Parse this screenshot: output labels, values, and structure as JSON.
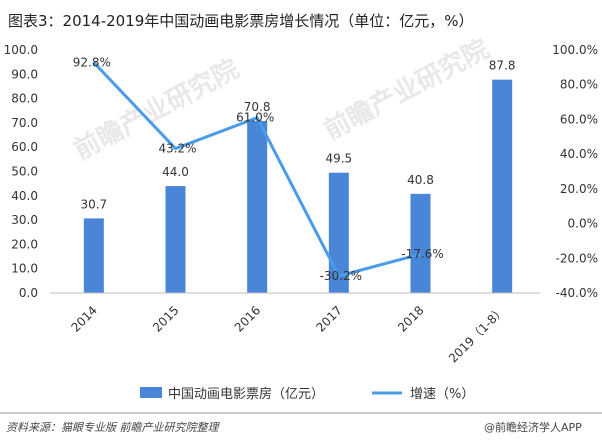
{
  "chart_data": {
    "type": "bar",
    "title": "图表3：2014-2019年中国动画电影票房增长情况（单位：亿元，%）",
    "categories": [
      "2014",
      "2015",
      "2016",
      "2017",
      "2018",
      "2019（1-8）"
    ],
    "series": [
      {
        "name": "中国动画电影票房（亿元）",
        "type": "bar",
        "axis": "left",
        "values": [
          30.7,
          44.0,
          70.8,
          49.5,
          40.8,
          87.8
        ],
        "labels": [
          "30.7",
          "44.0",
          "70.8",
          "49.5",
          "40.8",
          "87.8"
        ]
      },
      {
        "name": "增速（%）",
        "type": "line",
        "axis": "right",
        "values": [
          92.8,
          43.2,
          61.0,
          -30.2,
          -17.6,
          null
        ],
        "labels": [
          "92.8%",
          "43.2%",
          "61.0%",
          "-30.2%",
          "-17.6%",
          ""
        ]
      }
    ],
    "yleft": {
      "min": 0,
      "max": 100,
      "ticks": [
        "0.0",
        "10.0",
        "20.0",
        "30.0",
        "40.0",
        "50.0",
        "60.0",
        "70.0",
        "80.0",
        "90.0",
        "100.0"
      ]
    },
    "yright": {
      "min": -40,
      "max": 100,
      "ticks": [
        "-40.0%",
        "-20.0%",
        "0.0%",
        "20.0%",
        "40.0%",
        "60.0%",
        "80.0%",
        "100.0%"
      ]
    },
    "legend_position": "bottom",
    "grid": false,
    "colors": {
      "bar": "#4a86d8",
      "line": "#4a9be8"
    }
  },
  "footer": {
    "source": "资料来源：猫眼专业版 前瞻产业研究院整理",
    "brand": "@前瞻经济学人APP"
  },
  "watermark": "前瞻产业研究院"
}
